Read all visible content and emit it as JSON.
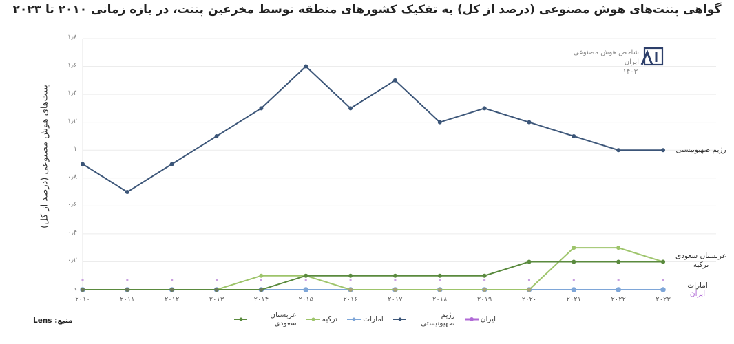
{
  "title": "گواهی پتنت‌های هوش مصنوعی (درصد از کل) به تفکیک کشورهای منطقه توسط مخرعین پتنت، در بازه زمانی ۲۰۱۰ تا ۲۰۲۳",
  "source": "منبع: Lens",
  "logo": {
    "line1": "شاخص هوش مصنوعی ایران",
    "line2": "۱۴۰۳",
    "mark": "AI"
  },
  "colors": {
    "israel": "#3b5578",
    "saudi": "#5a8a3e",
    "turkey": "#9dc46a",
    "uae": "#7ea6d8",
    "iran": "#b06ad6",
    "grid": "#ececec"
  },
  "series_labels": {
    "israel": "رژیم صهیونیستی",
    "saudi": "عربستان سعودی",
    "turkey": "ترکیه",
    "uae": "امارات",
    "iran": "ایران"
  },
  "chart_data": {
    "type": "line",
    "title": "گواهی پتنت‌های هوش مصنوعی (درصد از کل) به تفکیک کشورهای منطقه توسط مخرعین پتنت، در بازه زمانی ۲۰۱۰ تا ۲۰۲۳",
    "xlabel": "",
    "ylabel": "پتنت‌های هوش مصنوعی (درصد از کل)",
    "ylim": [
      0,
      1.8
    ],
    "yticks": [
      "۰",
      "۰٫۲",
      "۰٫۴",
      "۰٫۶",
      "۰٫۸",
      "۱",
      "۱٫۲",
      "۱٫۴",
      "۱٫۶",
      "۱٫۸"
    ],
    "x": [
      "۲۰۱۰",
      "۲۰۱۱",
      "۲۰۱۲",
      "۲۰۱۳",
      "۲۰۱۴",
      "۲۰۱۵",
      "۲۰۱۶",
      "۲۰۱۷",
      "۲۰۱۸",
      "۲۰۱۹",
      "۲۰۲۰",
      "۲۰۲۱",
      "۲۰۲۲",
      "۲۰۲۳"
    ],
    "grid": true,
    "legend_position": "bottom",
    "series": [
      {
        "name": "رژیم صهیونیستی",
        "key": "israel",
        "values": [
          0.9,
          0.7,
          0.9,
          1.1,
          1.3,
          1.6,
          1.3,
          1.5,
          1.2,
          1.3,
          1.2,
          1.1,
          1.0,
          1.0
        ]
      },
      {
        "name": "عربستان سعودی",
        "key": "saudi",
        "values": [
          0,
          0,
          0,
          0,
          0,
          0.1,
          0.1,
          0.1,
          0.1,
          0.1,
          0.2,
          0.2,
          0.2,
          0.2
        ]
      },
      {
        "name": "ترکیه",
        "key": "turkey",
        "values": [
          0,
          0,
          0,
          0,
          0.1,
          0.1,
          0,
          0,
          0,
          0,
          0,
          0.3,
          0.3,
          0.2
        ]
      },
      {
        "name": "امارات",
        "key": "uae",
        "values": [
          0,
          0,
          0,
          0,
          0,
          0,
          0,
          0,
          0,
          0,
          0,
          0,
          0,
          0
        ]
      },
      {
        "name": "ایران",
        "key": "iran",
        "values": [
          0.03,
          0.03,
          0.03,
          0.03,
          0.03,
          0.03,
          0.03,
          0.03,
          0.03,
          0.03,
          0.03,
          0.03,
          0.03,
          0.03
        ]
      }
    ],
    "end_labels": [
      {
        "text": "رژیم صهیونیستی",
        "series": "israel"
      },
      {
        "text": "عربستان سعودی",
        "series": "saudi"
      },
      {
        "text": "ترکیه",
        "series": "turkey"
      },
      {
        "text": "امارات",
        "series": "uae"
      },
      {
        "text": "ایران",
        "series": "iran"
      }
    ],
    "legend": [
      "ایران",
      "رژیم صهیونیستی",
      "امارات",
      "ترکیه",
      "عربستان سعودی"
    ]
  }
}
